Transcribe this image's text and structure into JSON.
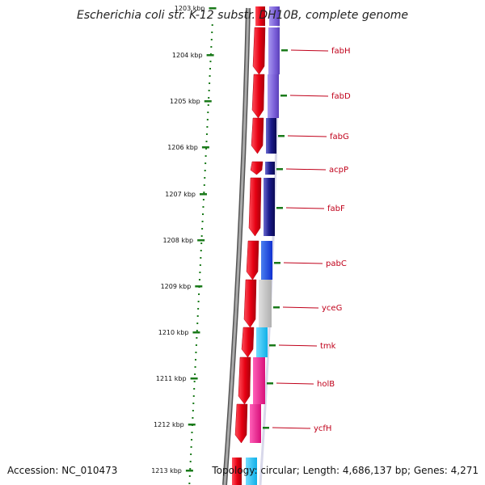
{
  "title": "Escherichia coli str. K-12 substr. DH10B, complete genome",
  "footer": {
    "accession": "Accession: NC_010473",
    "topology": "Topology: circular; Length: 4,686,137 bp; Genes: 4,271"
  },
  "ruler": {
    "ticks": [
      "1203 kbp",
      "1204 kbp",
      "1205 kbp",
      "1206 kbp",
      "1207 kbp",
      "1208 kbp",
      "1209 kbp",
      "1210 kbp",
      "1211 kbp",
      "1212 kbp",
      "1213 kbp"
    ],
    "tick_color": "#1a7a1a"
  },
  "genes": [
    {
      "name": "fabH",
      "cog_color": "#8a6fe0"
    },
    {
      "name": "fabD",
      "cog_color": "#8a6fe0"
    },
    {
      "name": "fabG",
      "cog_color": "#1a1a8a"
    },
    {
      "name": "acpP",
      "cog_color": "#1a1a8a"
    },
    {
      "name": "fabF",
      "cog_color": "#1a1a8a"
    },
    {
      "name": "pabC",
      "cog_color": "#1a3fe0"
    },
    {
      "name": "yceG",
      "cog_color": "#c0c0c0"
    },
    {
      "name": "tmk",
      "cog_color": "#22c0f0"
    },
    {
      "name": "holB",
      "cog_color": "#f02090"
    },
    {
      "name": "ycfH",
      "cog_color": "#f02090"
    }
  ],
  "colors": {
    "forward_strand": "#e60012",
    "backbone": "#7a7a7a",
    "label": "#c0001a"
  }
}
